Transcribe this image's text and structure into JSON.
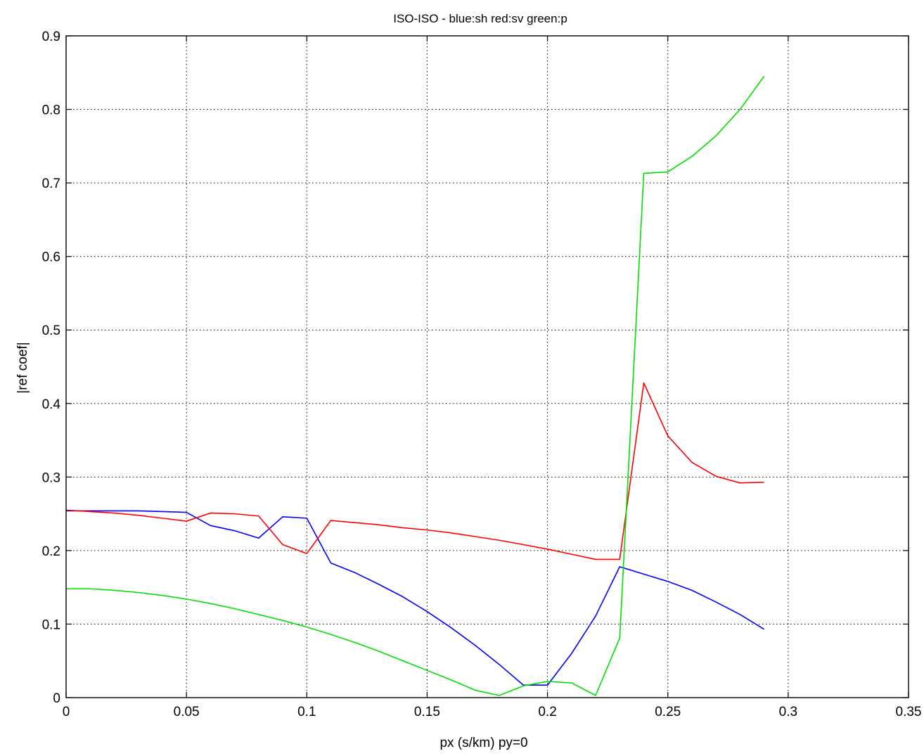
{
  "chart_data": {
    "type": "line",
    "title": "ISO-ISO - blue:sh red:sv green:p",
    "xlabel": "px (s/km) py=0",
    "ylabel": "|ref coef|",
    "xlim": [
      0,
      0.35
    ],
    "ylim": [
      0,
      0.9
    ],
    "grid": true,
    "x_ticks": [
      "0",
      "0.05",
      "0.1",
      "0.15",
      "0.2",
      "0.25",
      "0.3",
      "0.35"
    ],
    "y_ticks": [
      "0",
      "0.1",
      "0.2",
      "0.3",
      "0.4",
      "0.5",
      "0.6",
      "0.7",
      "0.8",
      "0.9"
    ],
    "series": [
      {
        "color": "#0000ff",
        "x": [
          0,
          0.01,
          0.02,
          0.03,
          0.04,
          0.05,
          0.06,
          0.07,
          0.08,
          0.09,
          0.1,
          0.11,
          0.12,
          0.13,
          0.14,
          0.15,
          0.16,
          0.17,
          0.18,
          0.19,
          0.2,
          0.21,
          0.22,
          0.23,
          0.24,
          0.25,
          0.26,
          0.27,
          0.28,
          0.29
        ],
        "y": [
          0.254,
          0.254,
          0.254,
          0.254,
          0.253,
          0.252,
          0.234,
          0.227,
          0.217,
          0.246,
          0.244,
          0.183,
          0.17,
          0.154,
          0.137,
          0.117,
          0.095,
          0.071,
          0.045,
          0.017,
          0.017,
          0.06,
          0.111,
          0.178,
          0.168,
          0.158,
          0.146,
          0.13,
          0.113,
          0.093
        ]
      },
      {
        "color": "#ff0000",
        "x": [
          0,
          0.01,
          0.02,
          0.03,
          0.04,
          0.05,
          0.06,
          0.07,
          0.08,
          0.09,
          0.1,
          0.11,
          0.12,
          0.13,
          0.14,
          0.15,
          0.16,
          0.17,
          0.18,
          0.19,
          0.2,
          0.21,
          0.22,
          0.23,
          0.24,
          0.25,
          0.26,
          0.27,
          0.28,
          0.29
        ],
        "y": [
          0.255,
          0.253,
          0.251,
          0.248,
          0.244,
          0.24,
          0.251,
          0.25,
          0.247,
          0.208,
          0.196,
          0.241,
          0.238,
          0.235,
          0.231,
          0.228,
          0.224,
          0.219,
          0.214,
          0.208,
          0.202,
          0.195,
          0.188,
          0.188,
          0.428,
          0.356,
          0.32,
          0.301,
          0.292,
          0.293
        ]
      },
      {
        "color": "#00e000",
        "x": [
          0,
          0.01,
          0.02,
          0.03,
          0.04,
          0.05,
          0.06,
          0.07,
          0.08,
          0.09,
          0.1,
          0.11,
          0.12,
          0.13,
          0.14,
          0.15,
          0.16,
          0.17,
          0.18,
          0.19,
          0.2,
          0.21,
          0.22,
          0.23,
          0.24,
          0.25,
          0.26,
          0.27,
          0.28,
          0.29
        ],
        "y": [
          0.148,
          0.148,
          0.146,
          0.143,
          0.139,
          0.134,
          0.128,
          0.121,
          0.113,
          0.105,
          0.096,
          0.086,
          0.075,
          0.063,
          0.05,
          0.037,
          0.024,
          0.01,
          0.003,
          0.016,
          0.022,
          0.02,
          0.003,
          0.081,
          0.713,
          0.715,
          0.736,
          0.764,
          0.8,
          0.845
        ]
      }
    ]
  }
}
